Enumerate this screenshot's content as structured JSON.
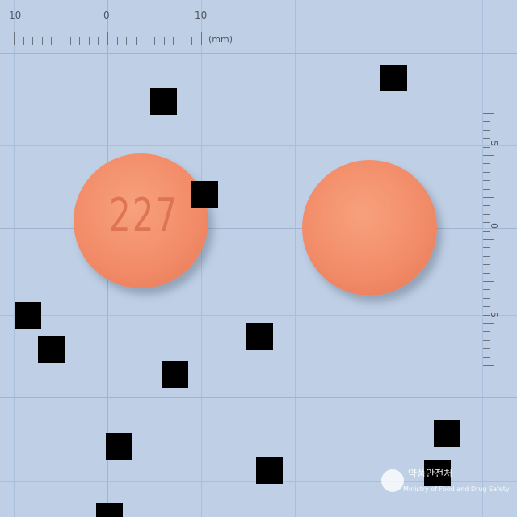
{
  "ruler": {
    "top_labels": [
      "10",
      "0",
      "10"
    ],
    "unit": "(mm)",
    "right_labels": [
      "5",
      "0",
      "5"
    ]
  },
  "pills": [
    {
      "name": "left-pill",
      "imprint": "227"
    },
    {
      "name": "right-pill",
      "imprint": ""
    }
  ],
  "logo": {
    "top_text": "약품안전처",
    "bottom_text": "Ministry of Food and Drug Safety"
  },
  "colors": {
    "background": "#bfd0e6",
    "grid": "#a9bfdb",
    "pill": "#f28b68",
    "redaction": "#000000"
  }
}
